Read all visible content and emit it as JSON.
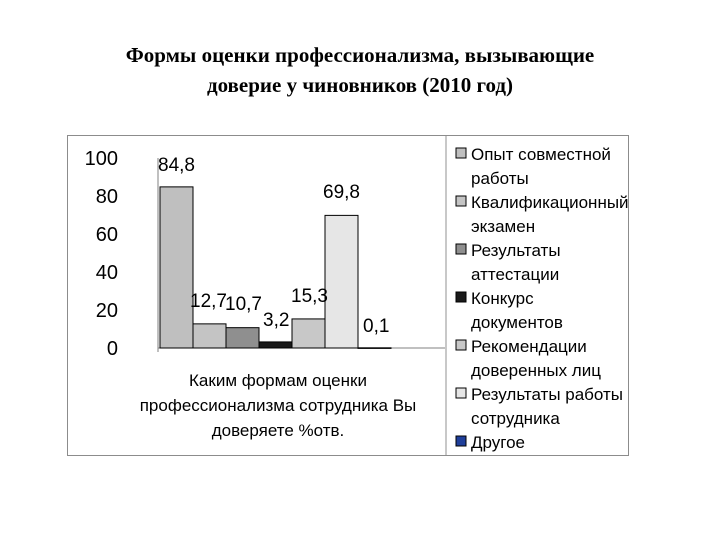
{
  "title": {
    "line1": "Формы оценки профессионализма, вызывающие",
    "line2": "доверие у чиновников (2010 год)"
  },
  "chart_data": {
    "type": "bar",
    "categories": [
      "Опыт совместной работы",
      "Квалификационный экзамен",
      "Результаты аттестации",
      "Конкурс документов",
      "Рекомендации доверенных лиц",
      "Результаты работы сотрудника",
      "Другое"
    ],
    "values": [
      84.8,
      12.7,
      10.7,
      3.2,
      15.3,
      69.8,
      0.1
    ],
    "value_labels": [
      "84,8",
      "12,7",
      "10,7",
      "3,2",
      "15,3",
      "69,8",
      "0,1"
    ],
    "colors": [
      "#bfbfbf",
      "#c4c4c4",
      "#8f8f8f",
      "#1a1a1a",
      "#c8c8c8",
      "#e6e6e6",
      "#1f3f9a"
    ],
    "ylim": [
      0,
      100
    ],
    "yticks": [
      0,
      20,
      40,
      60,
      80,
      100
    ],
    "xlabel_lines": [
      "Каким формам оценки",
      "профессионализма сотрудника Вы",
      "доверяете %отв."
    ],
    "legend": {
      "position": "right",
      "entries": [
        [
          "Опыт совместной",
          "работы"
        ],
        [
          "Квалификационный",
          "экзамен"
        ],
        [
          "Результаты",
          "аттестации"
        ],
        [
          "Конкурс",
          "документов"
        ],
        [
          "Рекомендации",
          "доверенных лиц"
        ],
        [
          "Результаты работы",
          "сотрудника"
        ],
        [
          "Другое"
        ]
      ]
    },
    "grid": false
  }
}
